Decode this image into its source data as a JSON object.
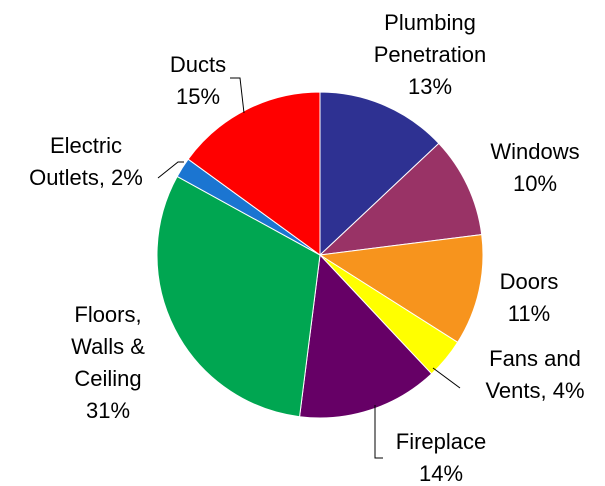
{
  "chart_data": {
    "type": "pie",
    "slices": [
      {
        "name": "Plumbing Penetration",
        "label_lines": [
          "Plumbing",
          "Penetration"
        ],
        "percent_label": "13%",
        "value": 13,
        "color": "#2E3192"
      },
      {
        "name": "Windows",
        "label_lines": [
          "Windows"
        ],
        "percent_label": "10%",
        "value": 10,
        "color": "#993366"
      },
      {
        "name": "Doors",
        "label_lines": [
          "Doors"
        ],
        "percent_label": "11%",
        "value": 11,
        "color": "#F7941D"
      },
      {
        "name": "Fans and Vents",
        "label_lines": [
          "Fans and",
          "Vents, 4%"
        ],
        "percent_label": "",
        "value": 4,
        "color": "#FFFF00"
      },
      {
        "name": "Fireplace",
        "label_lines": [
          "Fireplace"
        ],
        "percent_label": "14%",
        "value": 14,
        "color": "#660066"
      },
      {
        "name": "Floors, Walls & Ceiling",
        "label_lines": [
          "Floors,",
          "Walls &",
          "Ceiling"
        ],
        "percent_label": "31%",
        "value": 31,
        "color": "#00A651"
      },
      {
        "name": "Electric Outlets",
        "label_lines": [
          "Electric",
          "Outlets, 2%"
        ],
        "percent_label": "",
        "value": 2,
        "color": "#1B75D1"
      },
      {
        "name": "Ducts",
        "label_lines": [
          "Ducts"
        ],
        "percent_label": "15%",
        "value": 15,
        "color": "#FF0000"
      }
    ],
    "start_angle_deg": 0,
    "direction": "clockwise",
    "legend": "none"
  }
}
